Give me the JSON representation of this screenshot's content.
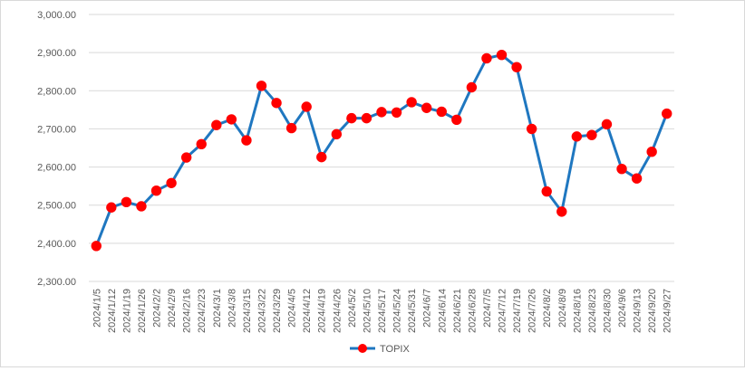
{
  "chart_data": {
    "type": "line",
    "title": "",
    "xlabel": "",
    "ylabel": "",
    "ylim": [
      2300,
      3000
    ],
    "yticks": [
      2300,
      2400,
      2500,
      2600,
      2700,
      2800,
      2900,
      3000
    ],
    "ytick_labels": [
      "2,300.00",
      "2,400.00",
      "2,500.00",
      "2,600.00",
      "2,700.00",
      "2,800.00",
      "2,900.00",
      "3,000.00"
    ],
    "grid": "horizontal",
    "legend": "bottom",
    "categories": [
      "2024/1/5",
      "2024/1/12",
      "2024/1/19",
      "2024/1/26",
      "2024/2/2",
      "2024/2/9",
      "2024/2/16",
      "2024/2/23",
      "2024/3/1",
      "2024/3/8",
      "2024/3/15",
      "2024/3/22",
      "2024/3/29",
      "2024/4/5",
      "2024/4/12",
      "2024/4/19",
      "2024/4/26",
      "2024/5/2",
      "2024/5/10",
      "2024/5/17",
      "2024/5/24",
      "2024/5/31",
      "2024/6/7",
      "2024/6/14",
      "2024/6/21",
      "2024/6/28",
      "2024/7/5",
      "2024/7/12",
      "2024/7/19",
      "2024/7/26",
      "2024/8/2",
      "2024/8/9",
      "2024/8/16",
      "2024/8/23",
      "2024/8/30",
      "2024/9/6",
      "2024/9/13",
      "2024/9/20",
      "2024/9/27"
    ],
    "series": [
      {
        "name": "TOPIX",
        "line_color": "#1f77c0",
        "marker_color": "#ff0000",
        "values": [
          2393,
          2494,
          2508,
          2497,
          2538,
          2558,
          2625,
          2660,
          2710,
          2725,
          2670,
          2813,
          2768,
          2702,
          2758,
          2626,
          2686,
          2728,
          2728,
          2744,
          2743,
          2770,
          2755,
          2745,
          2724,
          2809,
          2885,
          2894,
          2862,
          2700,
          2536,
          2483,
          2680,
          2684,
          2712,
          2595,
          2570,
          2640,
          2740
        ]
      }
    ]
  }
}
